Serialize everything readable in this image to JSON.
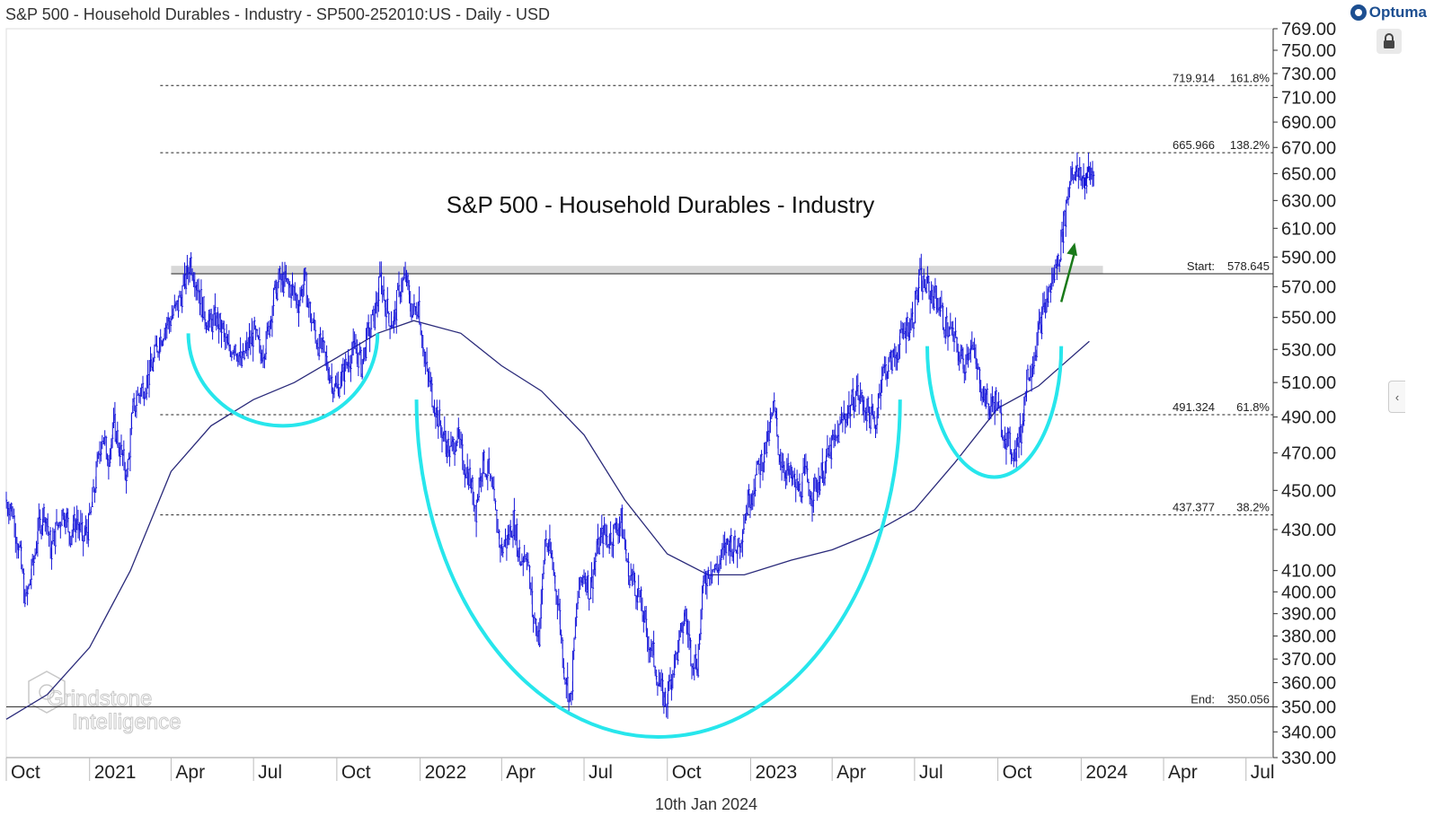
{
  "header": {
    "title": "S&P 500 - Household Durables - Industry - SP500-252010:US - Daily - USD"
  },
  "brand": {
    "name": "Optuma"
  },
  "footer": {
    "date": "10th Jan 2024"
  },
  "watermark": {
    "line1": "Grindstone",
    "line2": "Intelligence"
  },
  "colors": {
    "price": "#1414d8",
    "ma": "#2a2a7a",
    "arc": "#27e6ec",
    "arrow": "#1a7a1a",
    "band": "#d8d8d8"
  },
  "chart_data": {
    "type": "line",
    "title": "S&P 500 - Household Durables - Industry",
    "xlabel": "",
    "ylabel": "",
    "ylim": [
      330,
      769
    ],
    "y_ticks": [
      "769.00",
      "750.00",
      "730.00",
      "710.00",
      "690.00",
      "670.00",
      "650.00",
      "630.00",
      "610.00",
      "590.00",
      "570.00",
      "550.00",
      "530.00",
      "510.00",
      "490.00",
      "470.00",
      "450.00",
      "430.00",
      "410.00",
      "400.00",
      "390.00",
      "380.00",
      "370.00",
      "360.00",
      "350.00",
      "340.00",
      "330.00"
    ],
    "x_range": [
      "2020-10-01",
      "2024-07-31"
    ],
    "x_ticks": [
      {
        "label": "Oct",
        "date": "2020-10-01"
      },
      {
        "label": "2021",
        "date": "2021-01-01"
      },
      {
        "label": "Apr",
        "date": "2021-04-01"
      },
      {
        "label": "Jul",
        "date": "2021-07-01"
      },
      {
        "label": "Oct",
        "date": "2021-10-01"
      },
      {
        "label": "2022",
        "date": "2022-01-01"
      },
      {
        "label": "Apr",
        "date": "2022-04-01"
      },
      {
        "label": "Jul",
        "date": "2022-07-01"
      },
      {
        "label": "Oct",
        "date": "2022-10-01"
      },
      {
        "label": "2023",
        "date": "2023-01-01"
      },
      {
        "label": "Apr",
        "date": "2023-04-01"
      },
      {
        "label": "Jul",
        "date": "2023-07-01"
      },
      {
        "label": "Oct",
        "date": "2023-10-01"
      },
      {
        "label": "2024",
        "date": "2024-01-01"
      },
      {
        "label": "Apr",
        "date": "2024-04-01"
      },
      {
        "label": "Jul",
        "date": "2024-07-01"
      }
    ],
    "series": [
      {
        "name": "S&P 500 - Household Durables - Industry (Daily)",
        "style": "ohlc-bars",
        "points": [
          [
            "2020-10-01",
            445
          ],
          [
            "2020-10-08",
            440
          ],
          [
            "2020-10-16",
            420
          ],
          [
            "2020-10-23",
            395
          ],
          [
            "2020-10-30",
            410
          ],
          [
            "2020-11-06",
            430
          ],
          [
            "2020-11-13",
            440
          ],
          [
            "2020-11-20",
            420
          ],
          [
            "2020-11-27",
            432
          ],
          [
            "2020-12-04",
            440
          ],
          [
            "2020-12-11",
            428
          ],
          [
            "2020-12-18",
            435
          ],
          [
            "2020-12-25",
            425
          ],
          [
            "2021-01-01",
            432
          ],
          [
            "2021-01-08",
            455
          ],
          [
            "2021-01-15",
            480
          ],
          [
            "2021-01-22",
            468
          ],
          [
            "2021-01-29",
            485
          ],
          [
            "2021-02-05",
            470
          ],
          [
            "2021-02-12",
            458
          ],
          [
            "2021-02-19",
            495
          ],
          [
            "2021-02-26",
            505
          ],
          [
            "2021-03-05",
            510
          ],
          [
            "2021-03-12",
            520
          ],
          [
            "2021-03-19",
            535
          ],
          [
            "2021-03-26",
            545
          ],
          [
            "2021-04-02",
            550
          ],
          [
            "2021-04-09",
            558
          ],
          [
            "2021-04-16",
            570
          ],
          [
            "2021-04-23",
            588
          ],
          [
            "2021-04-30",
            572
          ],
          [
            "2021-05-07",
            555
          ],
          [
            "2021-05-14",
            545
          ],
          [
            "2021-05-21",
            550
          ],
          [
            "2021-05-28",
            542
          ],
          [
            "2021-06-04",
            528
          ],
          [
            "2021-06-11",
            535
          ],
          [
            "2021-06-18",
            520
          ],
          [
            "2021-06-25",
            532
          ],
          [
            "2021-07-02",
            540
          ],
          [
            "2021-07-09",
            528
          ],
          [
            "2021-07-16",
            535
          ],
          [
            "2021-07-23",
            560
          ],
          [
            "2021-07-30",
            575
          ],
          [
            "2021-08-06",
            572
          ],
          [
            "2021-08-13",
            568
          ],
          [
            "2021-08-20",
            560
          ],
          [
            "2021-08-27",
            575
          ],
          [
            "2021-09-03",
            550
          ],
          [
            "2021-09-10",
            535
          ],
          [
            "2021-09-17",
            528
          ],
          [
            "2021-09-24",
            515
          ],
          [
            "2021-10-01",
            505
          ],
          [
            "2021-10-08",
            515
          ],
          [
            "2021-10-15",
            525
          ],
          [
            "2021-10-22",
            530
          ],
          [
            "2021-10-29",
            520
          ],
          [
            "2021-11-05",
            540
          ],
          [
            "2021-11-12",
            550
          ],
          [
            "2021-11-19",
            575
          ],
          [
            "2021-11-26",
            555
          ],
          [
            "2021-12-03",
            545
          ],
          [
            "2021-12-10",
            570
          ],
          [
            "2021-12-17",
            575
          ],
          [
            "2021-12-24",
            552
          ],
          [
            "2021-12-31",
            560
          ],
          [
            "2022-01-07",
            520
          ],
          [
            "2022-01-14",
            505
          ],
          [
            "2022-01-21",
            490
          ],
          [
            "2022-01-28",
            478
          ],
          [
            "2022-02-04",
            470
          ],
          [
            "2022-02-11",
            480
          ],
          [
            "2022-02-18",
            465
          ],
          [
            "2022-02-25",
            458
          ],
          [
            "2022-03-04",
            440
          ],
          [
            "2022-03-11",
            465
          ],
          [
            "2022-03-18",
            460
          ],
          [
            "2022-03-25",
            440
          ],
          [
            "2022-04-01",
            420
          ],
          [
            "2022-04-08",
            425
          ],
          [
            "2022-04-15",
            435
          ],
          [
            "2022-04-22",
            415
          ],
          [
            "2022-04-29",
            420
          ],
          [
            "2022-05-06",
            390
          ],
          [
            "2022-05-13",
            380
          ],
          [
            "2022-05-20",
            425
          ],
          [
            "2022-05-27",
            415
          ],
          [
            "2022-06-03",
            395
          ],
          [
            "2022-06-10",
            365
          ],
          [
            "2022-06-17",
            352
          ],
          [
            "2022-06-24",
            395
          ],
          [
            "2022-07-01",
            410
          ],
          [
            "2022-07-08",
            400
          ],
          [
            "2022-07-15",
            418
          ],
          [
            "2022-07-22",
            428
          ],
          [
            "2022-07-29",
            425
          ],
          [
            "2022-08-05",
            430
          ],
          [
            "2022-08-12",
            435
          ],
          [
            "2022-08-19",
            410
          ],
          [
            "2022-08-26",
            405
          ],
          [
            "2022-09-02",
            395
          ],
          [
            "2022-09-09",
            380
          ],
          [
            "2022-09-16",
            372
          ],
          [
            "2022-09-23",
            358
          ],
          [
            "2022-09-30",
            352
          ],
          [
            "2022-10-07",
            365
          ],
          [
            "2022-10-14",
            375
          ],
          [
            "2022-10-21",
            390
          ],
          [
            "2022-10-28",
            372
          ],
          [
            "2022-11-04",
            368
          ],
          [
            "2022-11-11",
            405
          ],
          [
            "2022-11-18",
            412
          ],
          [
            "2022-11-25",
            410
          ],
          [
            "2022-12-02",
            418
          ],
          [
            "2022-12-09",
            425
          ],
          [
            "2022-12-16",
            420
          ],
          [
            "2022-12-23",
            430
          ],
          [
            "2022-12-30",
            445
          ],
          [
            "2023-01-06",
            455
          ],
          [
            "2023-01-13",
            465
          ],
          [
            "2023-01-20",
            475
          ],
          [
            "2023-01-27",
            495
          ],
          [
            "2023-02-03",
            468
          ],
          [
            "2023-02-10",
            460
          ],
          [
            "2023-02-17",
            455
          ],
          [
            "2023-02-24",
            450
          ],
          [
            "2023-03-03",
            458
          ],
          [
            "2023-03-10",
            448
          ],
          [
            "2023-03-17",
            455
          ],
          [
            "2023-03-24",
            462
          ],
          [
            "2023-03-31",
            472
          ],
          [
            "2023-04-07",
            478
          ],
          [
            "2023-04-14",
            490
          ],
          [
            "2023-04-21",
            495
          ],
          [
            "2023-04-28",
            505
          ],
          [
            "2023-05-05",
            498
          ],
          [
            "2023-05-12",
            492
          ],
          [
            "2023-05-19",
            485
          ],
          [
            "2023-05-26",
            515
          ],
          [
            "2023-06-02",
            520
          ],
          [
            "2023-06-09",
            525
          ],
          [
            "2023-06-16",
            535
          ],
          [
            "2023-06-23",
            545
          ],
          [
            "2023-06-30",
            550
          ],
          [
            "2023-07-07",
            575
          ],
          [
            "2023-07-14",
            570
          ],
          [
            "2023-07-21",
            565
          ],
          [
            "2023-07-28",
            560
          ],
          [
            "2023-08-04",
            545
          ],
          [
            "2023-08-11",
            540
          ],
          [
            "2023-08-18",
            530
          ],
          [
            "2023-08-25",
            520
          ],
          [
            "2023-09-01",
            535
          ],
          [
            "2023-09-08",
            518
          ],
          [
            "2023-09-15",
            505
          ],
          [
            "2023-09-22",
            495
          ],
          [
            "2023-09-29",
            500
          ],
          [
            "2023-10-06",
            485
          ],
          [
            "2023-10-13",
            475
          ],
          [
            "2023-10-20",
            470
          ],
          [
            "2023-10-27",
            480
          ],
          [
            "2023-11-03",
            515
          ],
          [
            "2023-11-10",
            525
          ],
          [
            "2023-11-17",
            545
          ],
          [
            "2023-11-24",
            560
          ],
          [
            "2023-12-01",
            575
          ],
          [
            "2023-12-08",
            590
          ],
          [
            "2023-12-15",
            620
          ],
          [
            "2023-12-22",
            655
          ],
          [
            "2023-12-29",
            648
          ],
          [
            "2024-01-05",
            645
          ],
          [
            "2024-01-10",
            650
          ]
        ]
      },
      {
        "name": "Moving Average",
        "style": "line",
        "points": [
          [
            "2020-10-01",
            345
          ],
          [
            "2020-11-15",
            355
          ],
          [
            "2021-01-01",
            375
          ],
          [
            "2021-02-15",
            410
          ],
          [
            "2021-04-01",
            460
          ],
          [
            "2021-05-15",
            485
          ],
          [
            "2021-07-01",
            500
          ],
          [
            "2021-08-15",
            510
          ],
          [
            "2021-10-01",
            525
          ],
          [
            "2021-11-15",
            540
          ],
          [
            "2021-12-25",
            548
          ],
          [
            "2022-02-15",
            540
          ],
          [
            "2022-04-01",
            520
          ],
          [
            "2022-05-15",
            505
          ],
          [
            "2022-07-01",
            480
          ],
          [
            "2022-08-15",
            445
          ],
          [
            "2022-10-01",
            418
          ],
          [
            "2022-11-15",
            408
          ],
          [
            "2022-12-25",
            408
          ],
          [
            "2023-02-15",
            415
          ],
          [
            "2023-04-01",
            420
          ],
          [
            "2023-05-15",
            428
          ],
          [
            "2023-07-01",
            440
          ],
          [
            "2023-08-15",
            465
          ],
          [
            "2023-10-01",
            495
          ],
          [
            "2023-11-15",
            508
          ],
          [
            "2024-01-10",
            535
          ]
        ]
      }
    ],
    "horizontal_levels": [
      {
        "label": "719.914",
        "pct": "161.8%",
        "value": 719.914,
        "style": "dotted"
      },
      {
        "label": "665.966",
        "pct": "138.2%",
        "value": 665.966,
        "style": "dotted"
      },
      {
        "label": "Start:",
        "pct": "578.645",
        "value": 578.645,
        "style": "solid"
      },
      {
        "label": "491.324",
        "pct": "61.8%",
        "value": 491.324,
        "style": "dotted"
      },
      {
        "label": "437.377",
        "pct": "38.2%",
        "value": 437.377,
        "style": "dotted"
      },
      {
        "label": "End:",
        "pct": "350.056",
        "value": 350.056,
        "style": "solid"
      }
    ],
    "resistance_band": {
      "from_date": "2021-04-01",
      "to_date": "2024-01-25",
      "low": 578.645,
      "high": 584
    },
    "annotations": [
      {
        "type": "arc",
        "name": "left-shoulder",
        "from_date": "2021-04-20",
        "to_date": "2021-11-15",
        "top": 540,
        "bottom": 485
      },
      {
        "type": "arc",
        "name": "cup",
        "from_date": "2021-12-28",
        "to_date": "2023-06-15",
        "top": 500,
        "bottom": 338
      },
      {
        "type": "arc",
        "name": "right-shoulder",
        "from_date": "2023-07-15",
        "to_date": "2023-12-10",
        "top": 532,
        "bottom": 457
      },
      {
        "type": "arrow",
        "name": "breakout-arrow",
        "from_date": "2023-12-10",
        "from_value": 560,
        "to_date": "2023-12-25",
        "to_value": 600
      }
    ]
  }
}
